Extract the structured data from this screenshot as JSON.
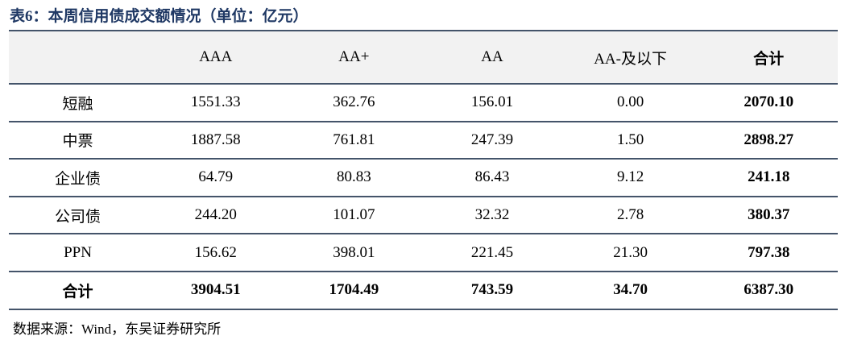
{
  "title": "表6：本周信用债成交额情况（单位：亿元）",
  "table": {
    "columns": [
      "AAA",
      "AA+",
      "AA",
      "AA-及以下",
      "合计"
    ],
    "rows": [
      [
        "短融",
        "1551.33",
        "362.76",
        "156.01",
        "0.00",
        "2070.10"
      ],
      [
        "中票",
        "1887.58",
        "761.81",
        "247.39",
        "1.50",
        "2898.27"
      ],
      [
        "企业债",
        "64.79",
        "80.83",
        "86.43",
        "9.12",
        "241.18"
      ],
      [
        "公司债",
        "244.20",
        "101.07",
        "32.32",
        "2.78",
        "380.37"
      ],
      [
        "PPN",
        "156.62",
        "398.01",
        "221.45",
        "21.30",
        "797.38"
      ],
      [
        "合计",
        "3904.51",
        "1704.49",
        "743.59",
        "34.70",
        "6387.30"
      ]
    ]
  },
  "source": "数据来源：Wind，东吴证券研究所"
}
